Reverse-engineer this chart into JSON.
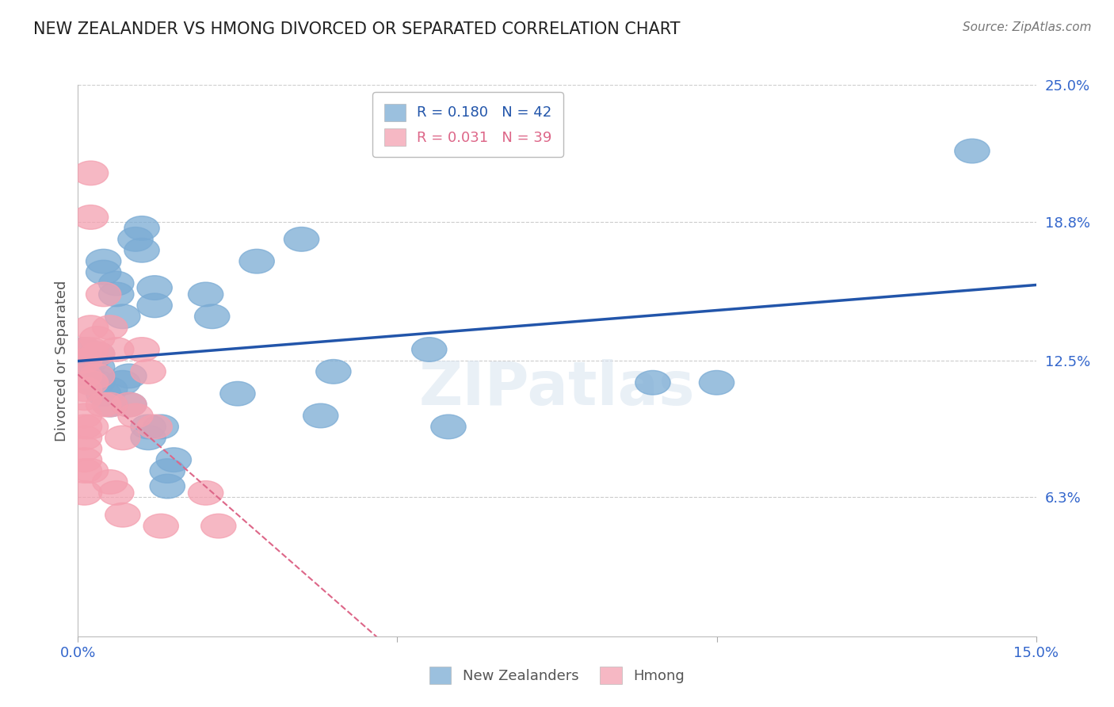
{
  "title": "NEW ZEALANDER VS HMONG DIVORCED OR SEPARATED CORRELATION CHART",
  "source": "Source: ZipAtlas.com",
  "ylabel": "Divorced or Separated",
  "xlim": [
    0.0,
    0.15
  ],
  "ylim": [
    0.0,
    0.25
  ],
  "y_ticks_right": [
    0.063,
    0.125,
    0.188,
    0.25
  ],
  "y_tick_labels_right": [
    "6.3%",
    "12.5%",
    "18.8%",
    "25.0%"
  ],
  "background_color": "#ffffff",
  "nz_color": "#7aabd4",
  "hmong_color": "#f4a0b0",
  "nz_R": 0.18,
  "nz_N": 42,
  "hmong_R": 0.031,
  "hmong_N": 39,
  "nz_line_color": "#2255aa",
  "hmong_line_color": "#dd6688",
  "grid_color": "#cccccc",
  "nz_scatter_x": [
    0.001,
    0.001,
    0.002,
    0.002,
    0.003,
    0.003,
    0.003,
    0.003,
    0.004,
    0.004,
    0.004,
    0.005,
    0.005,
    0.006,
    0.006,
    0.007,
    0.007,
    0.008,
    0.008,
    0.009,
    0.01,
    0.01,
    0.011,
    0.011,
    0.012,
    0.012,
    0.013,
    0.014,
    0.014,
    0.015,
    0.02,
    0.021,
    0.025,
    0.028,
    0.035,
    0.038,
    0.04,
    0.055,
    0.058,
    0.09,
    0.1,
    0.14
  ],
  "nz_scatter_y": [
    0.12,
    0.13,
    0.115,
    0.125,
    0.115,
    0.128,
    0.122,
    0.118,
    0.17,
    0.165,
    0.11,
    0.112,
    0.105,
    0.16,
    0.155,
    0.145,
    0.115,
    0.118,
    0.105,
    0.18,
    0.185,
    0.175,
    0.095,
    0.09,
    0.158,
    0.15,
    0.095,
    0.075,
    0.068,
    0.08,
    0.155,
    0.145,
    0.11,
    0.17,
    0.18,
    0.1,
    0.12,
    0.13,
    0.095,
    0.115,
    0.115,
    0.22
  ],
  "hmong_scatter_x": [
    0.001,
    0.001,
    0.001,
    0.001,
    0.001,
    0.001,
    0.001,
    0.001,
    0.001,
    0.001,
    0.001,
    0.001,
    0.002,
    0.002,
    0.002,
    0.002,
    0.002,
    0.002,
    0.002,
    0.003,
    0.003,
    0.003,
    0.004,
    0.004,
    0.005,
    0.005,
    0.005,
    0.006,
    0.006,
    0.007,
    0.007,
    0.008,
    0.009,
    0.01,
    0.011,
    0.012,
    0.013,
    0.02,
    0.022
  ],
  "hmong_scatter_y": [
    0.13,
    0.125,
    0.118,
    0.112,
    0.108,
    0.1,
    0.095,
    0.09,
    0.085,
    0.08,
    0.075,
    0.065,
    0.21,
    0.19,
    0.14,
    0.13,
    0.115,
    0.095,
    0.075,
    0.135,
    0.128,
    0.118,
    0.155,
    0.105,
    0.14,
    0.105,
    0.07,
    0.13,
    0.065,
    0.09,
    0.055,
    0.105,
    0.1,
    0.13,
    0.12,
    0.095,
    0.05,
    0.065,
    0.05
  ]
}
